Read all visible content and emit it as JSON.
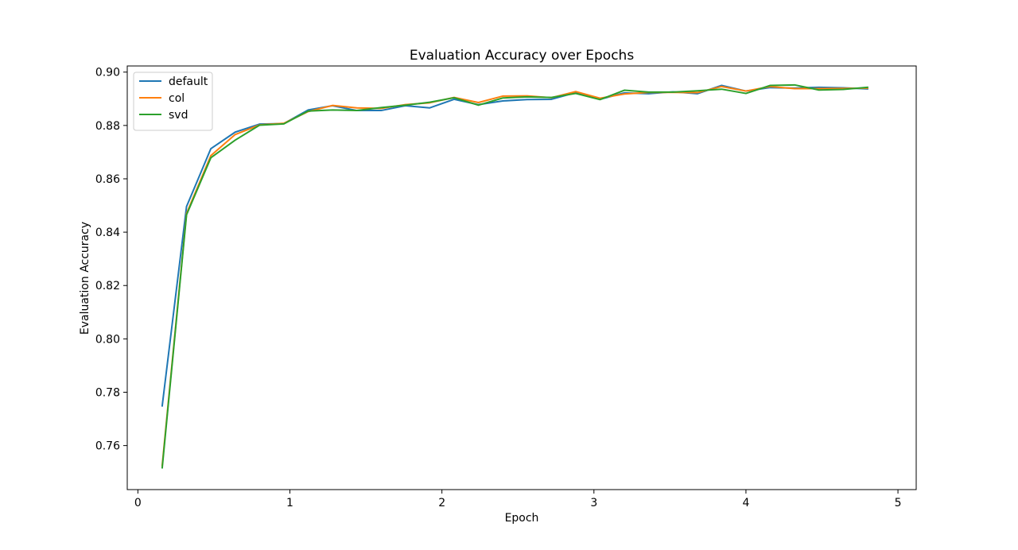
{
  "chart_data": {
    "type": "line",
    "title": "Evaluation Accuracy over Epochs",
    "xlabel": "Epoch",
    "ylabel": "Evaluation Accuracy",
    "xlim": [
      -0.07,
      5.12
    ],
    "ylim": [
      0.7435,
      0.9023
    ],
    "xticks": [
      0,
      1,
      2,
      3,
      4,
      5
    ],
    "xtick_labels": [
      "0",
      "1",
      "2",
      "3",
      "4",
      "5"
    ],
    "yticks": [
      0.76,
      0.78,
      0.8,
      0.82,
      0.84,
      0.86,
      0.88,
      0.9
    ],
    "ytick_labels": [
      "0.76",
      "0.78",
      "0.80",
      "0.82",
      "0.84",
      "0.86",
      "0.88",
      "0.90"
    ],
    "grid": false,
    "legend_position": "top-left",
    "x": [
      0.16,
      0.32,
      0.48,
      0.64,
      0.8,
      0.96,
      1.12,
      1.28,
      1.44,
      1.6,
      1.76,
      1.92,
      2.08,
      2.24,
      2.4,
      2.56,
      2.72,
      2.88,
      3.04,
      3.2,
      3.36,
      3.52,
      3.68,
      3.84,
      4.0,
      4.16,
      4.32,
      4.48,
      4.64,
      4.8
    ],
    "series": [
      {
        "name": "default",
        "color": "#1f77b4",
        "values": [
          0.7749,
          0.8496,
          0.8713,
          0.8775,
          0.8805,
          0.8807,
          0.8858,
          0.8874,
          0.8856,
          0.8856,
          0.8874,
          0.8866,
          0.8898,
          0.8878,
          0.8892,
          0.8897,
          0.8898,
          0.8923,
          0.8898,
          0.8922,
          0.8919,
          0.8926,
          0.8919,
          0.895,
          0.8929,
          0.8942,
          0.894,
          0.8943,
          0.8941,
          0.8937
        ]
      },
      {
        "name": "col",
        "color": "#ff7f0e",
        "values": [
          0.7526,
          0.847,
          0.8687,
          0.8766,
          0.8802,
          0.8808,
          0.8852,
          0.8875,
          0.8866,
          0.8864,
          0.8878,
          0.8885,
          0.8905,
          0.8886,
          0.891,
          0.8911,
          0.8904,
          0.8927,
          0.8902,
          0.8918,
          0.8924,
          0.8924,
          0.8923,
          0.8946,
          0.8929,
          0.8946,
          0.8938,
          0.8938,
          0.8939,
          0.894
        ]
      },
      {
        "name": "svd",
        "color": "#2ca02c",
        "values": [
          0.7517,
          0.8465,
          0.8679,
          0.8745,
          0.8801,
          0.8806,
          0.8854,
          0.8858,
          0.8856,
          0.8867,
          0.8876,
          0.8887,
          0.8904,
          0.8876,
          0.8903,
          0.8907,
          0.8905,
          0.892,
          0.8897,
          0.8932,
          0.8925,
          0.8925,
          0.893,
          0.8936,
          0.892,
          0.895,
          0.8952,
          0.8933,
          0.8935,
          0.8943
        ]
      }
    ]
  }
}
